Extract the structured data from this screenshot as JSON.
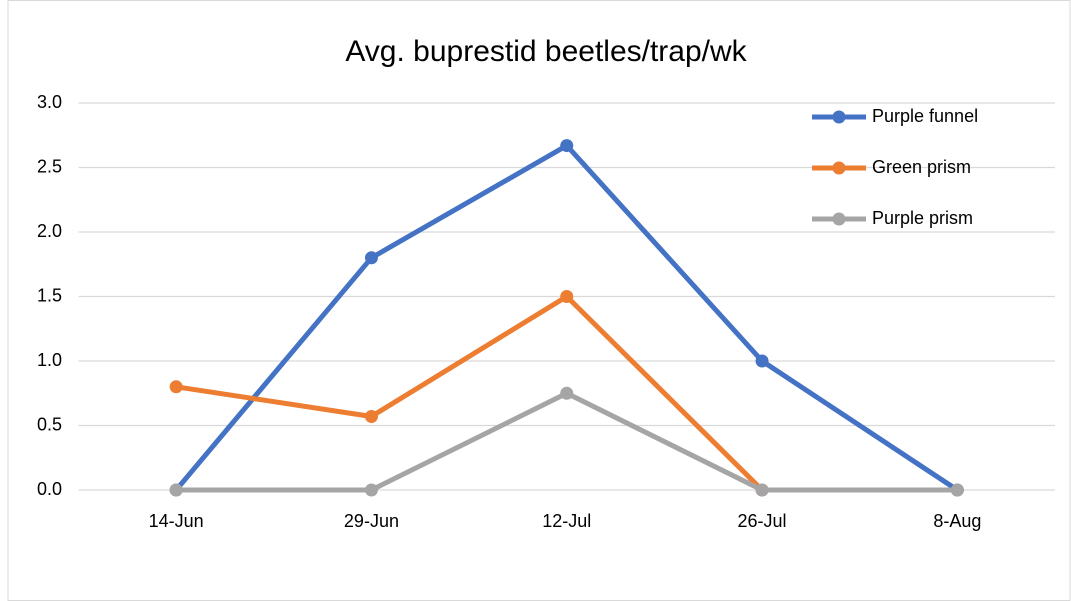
{
  "chart_data": {
    "type": "line",
    "title": "Avg. buprestid beetles/trap/wk",
    "categories": [
      "14-Jun",
      "29-Jun",
      "12-Jul",
      "26-Jul",
      "8-Aug"
    ],
    "series": [
      {
        "name": "Purple funnel",
        "color": "#4472c4",
        "values": [
          0,
          1.8,
          2.67,
          1.0,
          0
        ]
      },
      {
        "name": "Green prism",
        "color": "#ed7d31",
        "values": [
          0.8,
          0.57,
          1.5,
          0,
          null
        ]
      },
      {
        "name": "Purple prism",
        "color": "#a5a5a5",
        "values": [
          0,
          0,
          0.75,
          0,
          0
        ]
      }
    ],
    "ylim": [
      0,
      3
    ],
    "yticks": [
      {
        "value": 0,
        "label": "0.0"
      },
      {
        "value": 0.5,
        "label": "0.5"
      },
      {
        "value": 1,
        "label": "1.0"
      },
      {
        "value": 1.5,
        "label": "1.5"
      },
      {
        "value": 2,
        "label": "2.0"
      },
      {
        "value": 2.5,
        "label": "2.5"
      },
      {
        "value": 3,
        "label": "3.0"
      }
    ],
    "grid": true,
    "legend": "top-right"
  }
}
